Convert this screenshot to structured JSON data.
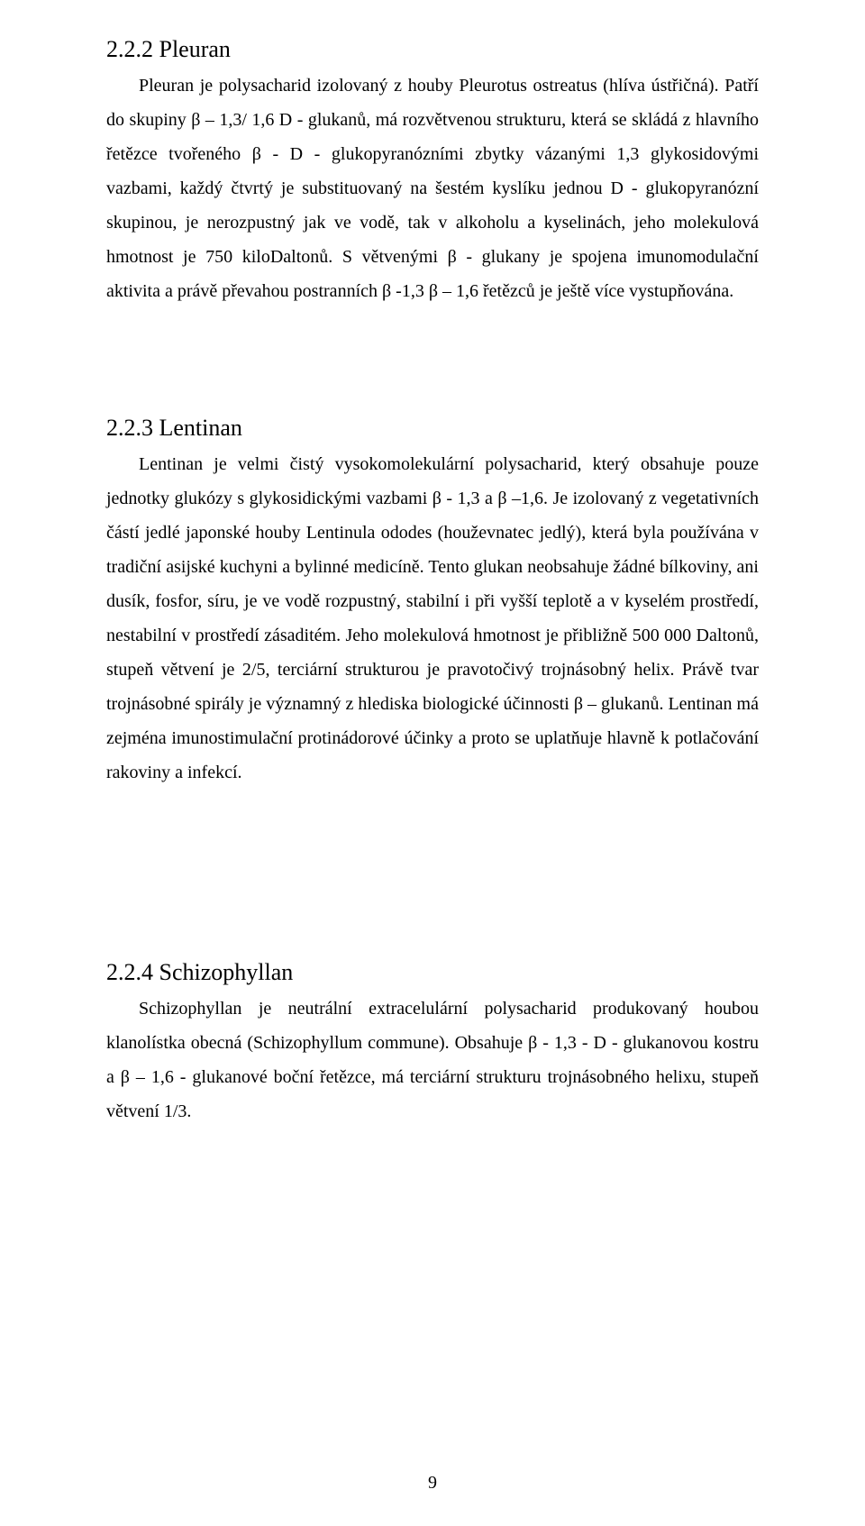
{
  "section_222": {
    "heading": "2.2.2 Pleuran",
    "p1": "Pleuran je polysacharid izolovaný z houby Pleurotus ostreatus (hlíva ústřičná). Patří do skupiny β – 1,3/ 1,6 D - glukanů, má rozvětvenou strukturu, která se skládá z hlavního řetězce tvořeného β - D - glukopyranózními zbytky vázanými 1,3 glykosidovými vazbami, každý čtvrtý je substituovaný na šestém kyslíku jednou D - glukopyranózní skupinou, je nerozpustný jak ve vodě, tak v alkoholu a kyselinách, jeho molekulová  hmotnost je 750 kiloDaltonů. S větvenými β - glukany je spojena imunomodulační aktivita a právě převahou postranních β -1,3 β – 1,6 řetězců je ještě více vystupňována."
  },
  "section_223": {
    "heading": "2.2.3 Lentinan",
    "p1": "Lentinan je velmi čistý vysokomolekulární polysacharid, který obsahuje pouze jednotky glukózy  s glykosidickými vazbami β - 1,3 a β –1,6. Je izolovaný z vegetativních částí jedlé japonské houby Lentinula ododes (houževnatec jedlý), která byla používána v tradiční asijské kuchyni a bylinné medicíně. Tento glukan neobsahuje žádné bílkoviny, ani dusík, fosfor, síru, je ve vodě rozpustný, stabilní i při vyšší teplotě a v kyselém prostředí, nestabilní v prostředí zásaditém. Jeho molekulová hmotnost je přibližně 500 000 Daltonů, stupeň větvení  je 2/5, terciární strukturou je pravotočivý trojnásobný helix. Právě tvar trojnásobné spirály je významný z hlediska biologické účinnosti β – glukanů. Lentinan má zejména imunostimulační protinádorové účinky a proto se uplatňuje hlavně k potlačování rakoviny a infekcí."
  },
  "section_224": {
    "heading": "2.2.4 Schizophyllan",
    "p1": "Schizophyllan je neutrální extracelulární polysacharid produkovaný houbou klanolístka obecná (Schizophyllum commune).  Obsahuje β - 1,3 - D - glukanovou kostru a β – 1,6 - glukanové boční řetězce, má terciární strukturu trojnásobného helixu, stupeň větvení 1/3."
  },
  "page_number": "9"
}
